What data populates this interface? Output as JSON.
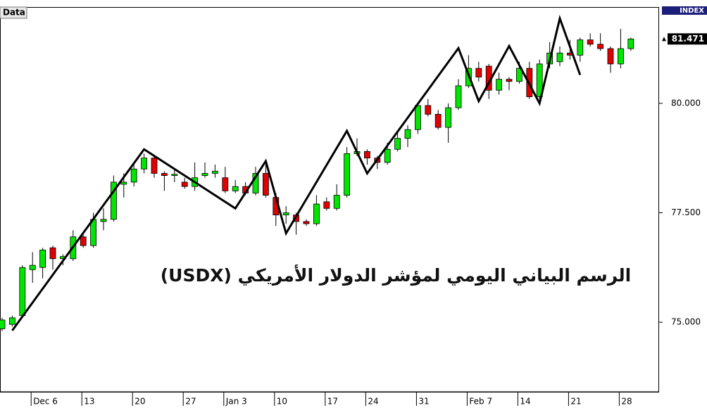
{
  "chart_data": {
    "type": "candlestick",
    "corner_label": "Data",
    "symbol_label": "INDEX",
    "annotation": "الرسم البياني اليومي لمؤشر الدولار الأمريكي (USDX)",
    "categories": [
      null,
      null,
      null,
      "Dec 6",
      null,
      null,
      null,
      null,
      "13",
      null,
      null,
      null,
      null,
      "20",
      null,
      null,
      null,
      null,
      "27",
      null,
      null,
      null,
      "Jan 3",
      null,
      null,
      null,
      null,
      "10",
      null,
      null,
      null,
      null,
      "17",
      null,
      null,
      null,
      "24",
      null,
      null,
      null,
      null,
      "31",
      null,
      null,
      null,
      null,
      "Feb 7",
      null,
      null,
      null,
      null,
      "14",
      null,
      null,
      null,
      null,
      "21",
      null,
      null,
      null,
      null,
      "28",
      null
    ],
    "open": [
      74.85,
      74.95,
      75.15,
      76.2,
      76.25,
      76.7,
      76.45,
      76.45,
      76.95,
      76.75,
      77.3,
      77.35,
      78.15,
      78.2,
      78.5,
      78.75,
      78.4,
      78.35,
      78.2,
      78.1,
      78.35,
      78.4,
      78.3,
      78.0,
      78.1,
      77.95,
      78.4,
      77.85,
      77.45,
      77.45,
      77.3,
      77.25,
      77.75,
      77.6,
      77.9,
      78.85,
      78.9,
      78.75,
      78.65,
      78.95,
      79.2,
      79.4,
      79.95,
      79.75,
      79.45,
      79.9,
      80.4,
      80.8,
      80.85,
      80.3,
      80.55,
      80.5,
      80.8,
      80.15,
      80.9,
      80.95,
      81.15,
      81.1,
      81.45,
      81.35,
      81.25,
      80.9,
      81.25
    ],
    "high": [
      75.1,
      75.15,
      76.3,
      76.6,
      76.7,
      76.75,
      76.55,
      77.1,
      77.0,
      77.5,
      77.6,
      78.35,
      78.4,
      78.6,
      78.85,
      78.8,
      78.45,
      78.5,
      78.3,
      78.65,
      78.65,
      78.6,
      78.55,
      78.25,
      78.2,
      78.55,
      78.6,
      77.95,
      77.65,
      77.5,
      77.35,
      77.9,
      77.85,
      78.15,
      79.0,
      79.2,
      78.95,
      78.8,
      79.1,
      79.35,
      79.5,
      80.0,
      80.1,
      79.85,
      80.0,
      80.55,
      81.1,
      80.95,
      80.9,
      80.7,
      80.6,
      80.95,
      80.95,
      81.0,
      81.4,
      81.3,
      81.45,
      81.5,
      81.6,
      81.6,
      81.3,
      81.7,
      81.5
    ],
    "low": [
      74.8,
      74.9,
      75.1,
      75.9,
      76.0,
      76.2,
      76.3,
      76.4,
      76.7,
      76.7,
      77.1,
      77.3,
      77.85,
      78.1,
      78.4,
      78.3,
      78.0,
      78.2,
      78.05,
      78.0,
      78.3,
      78.3,
      77.95,
      77.95,
      77.9,
      77.9,
      77.85,
      77.2,
      77.25,
      77.0,
      77.2,
      77.2,
      77.55,
      77.55,
      77.85,
      78.8,
      78.6,
      78.5,
      78.6,
      78.9,
      79.0,
      79.3,
      79.7,
      79.4,
      79.1,
      79.85,
      80.35,
      80.5,
      80.1,
      80.2,
      80.3,
      80.45,
      80.1,
      80.1,
      80.8,
      80.85,
      81.0,
      80.95,
      81.3,
      81.2,
      80.7,
      80.8,
      81.2
    ],
    "close": [
      75.05,
      75.1,
      76.25,
      76.3,
      76.65,
      76.45,
      76.5,
      76.95,
      76.75,
      77.35,
      77.35,
      78.2,
      78.2,
      78.5,
      78.75,
      78.4,
      78.35,
      78.38,
      78.1,
      78.3,
      78.4,
      78.45,
      78.0,
      78.1,
      77.95,
      78.4,
      77.9,
      77.45,
      77.5,
      77.3,
      77.25,
      77.7,
      77.6,
      77.9,
      78.85,
      78.9,
      78.75,
      78.65,
      78.95,
      79.2,
      79.4,
      79.95,
      79.75,
      79.45,
      79.9,
      80.4,
      80.8,
      80.6,
      80.3,
      80.55,
      80.5,
      80.8,
      80.15,
      80.9,
      81.15,
      81.15,
      81.1,
      81.45,
      81.35,
      81.25,
      80.9,
      81.25,
      81.471
    ],
    "up_color": "#00e600",
    "down_color": "#e00000",
    "overlay": {
      "type": "line",
      "color": "#000000",
      "x": [
        1,
        14,
        23,
        26,
        28,
        34,
        36,
        45,
        47,
        50,
        53,
        55,
        57
      ],
      "values": [
        74.81,
        78.95,
        77.6,
        78.68,
        77.03,
        79.37,
        78.4,
        81.26,
        80.05,
        81.31,
        80.0,
        81.94,
        80.65
      ]
    },
    "ylim": [
      73.41,
      82.2
    ],
    "yticks": [
      {
        "value": 75,
        "label": "75.000"
      },
      {
        "value": 77.5,
        "label": "77.500"
      },
      {
        "value": 80,
        "label": "80.000"
      }
    ],
    "last_price": 81.471
  }
}
